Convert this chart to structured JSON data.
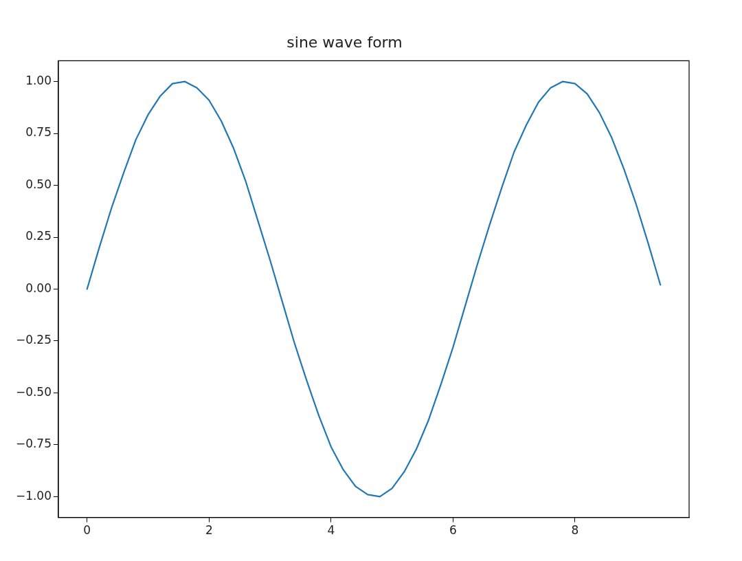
{
  "chart_data": {
    "type": "line",
    "title": "sine wave form",
    "x": [
      0,
      0.2,
      0.4,
      0.6,
      0.8,
      1.0,
      1.2,
      1.4,
      1.6,
      1.8,
      2.0,
      2.2,
      2.4,
      2.6,
      2.8,
      3.0,
      3.2,
      3.4,
      3.6,
      3.8,
      4.0,
      4.2,
      4.4,
      4.6,
      4.8,
      5.0,
      5.2,
      5.4,
      5.6,
      5.8,
      6.0,
      6.2,
      6.4,
      6.6,
      6.8,
      7.0,
      7.2,
      7.4,
      7.6,
      7.8,
      8.0,
      8.2,
      8.4,
      8.6,
      8.8,
      9.0,
      9.2,
      9.4
    ],
    "series": [
      {
        "color": "#1f77b4",
        "values": [
          0,
          0.2,
          0.39,
          0.56,
          0.72,
          0.84,
          0.93,
          0.99,
          1.0,
          0.97,
          0.91,
          0.81,
          0.68,
          0.52,
          0.33,
          0.14,
          -0.06,
          -0.26,
          -0.44,
          -0.61,
          -0.76,
          -0.87,
          -0.95,
          -0.99,
          -1.0,
          -0.96,
          -0.88,
          -0.77,
          -0.63,
          -0.46,
          -0.28,
          -0.08,
          0.12,
          0.31,
          0.49,
          0.66,
          0.79,
          0.9,
          0.97,
          1.0,
          0.99,
          0.94,
          0.85,
          0.73,
          0.58,
          0.41,
          0.22,
          0.02
        ]
      }
    ],
    "xlim": [
      -0.47,
      9.87
    ],
    "ylim": [
      -1.1,
      1.1
    ],
    "xticks": [
      0,
      2,
      4,
      6,
      8
    ],
    "yticks": [
      {
        "value": -1,
        "label": "−1.00"
      },
      {
        "value": -0.75,
        "label": "−0.75"
      },
      {
        "value": -0.5,
        "label": "−0.50"
      },
      {
        "value": -0.25,
        "label": "−0.25"
      },
      {
        "value": 0,
        "label": "0.00"
      },
      {
        "value": 0.25,
        "label": "0.25"
      },
      {
        "value": 0.5,
        "label": "0.50"
      },
      {
        "value": 0.75,
        "label": "0.75"
      },
      {
        "value": 1,
        "label": "1.00"
      }
    ],
    "grid": false,
    "legend": false,
    "marker": "none",
    "line_style": "solid"
  }
}
